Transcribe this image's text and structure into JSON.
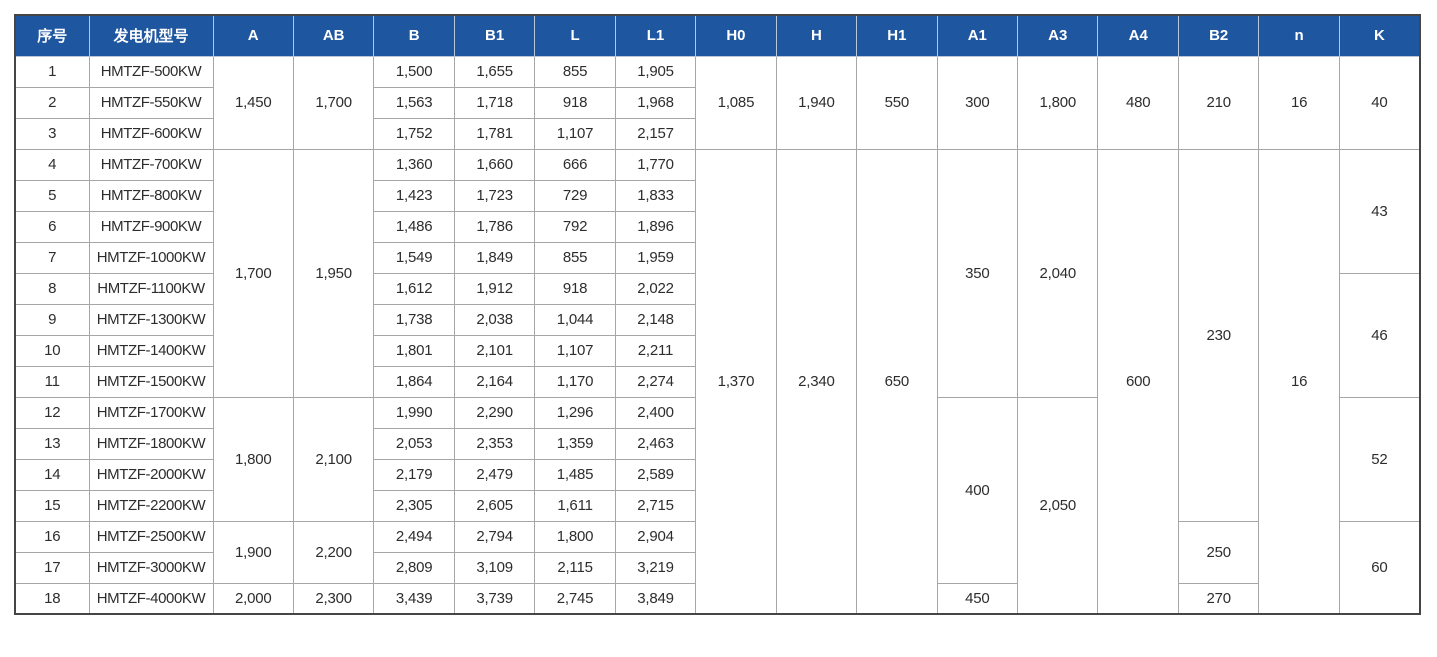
{
  "colors": {
    "header_bg": "#1e56a0",
    "header_text": "#ffffff",
    "header_divider": "#b9c6d9",
    "grid": "#a6a6a6",
    "outer": "#454545",
    "text": "#2d2d2d",
    "page_bg": "#ffffff"
  },
  "chart_data": {
    "type": "table",
    "title": "",
    "columns": [
      {
        "key": "no",
        "label": "序号"
      },
      {
        "key": "model",
        "label": "发电机型号"
      },
      {
        "key": "A",
        "label": "A"
      },
      {
        "key": "AB",
        "label": "AB"
      },
      {
        "key": "B",
        "label": "B"
      },
      {
        "key": "B1",
        "label": "B1"
      },
      {
        "key": "L",
        "label": "L"
      },
      {
        "key": "L1",
        "label": "L1"
      },
      {
        "key": "H0",
        "label": "H0"
      },
      {
        "key": "H",
        "label": "H"
      },
      {
        "key": "H1",
        "label": "H1"
      },
      {
        "key": "A1",
        "label": "A1"
      },
      {
        "key": "A3",
        "label": "A3"
      },
      {
        "key": "A4",
        "label": "A4"
      },
      {
        "key": "B2",
        "label": "B2"
      },
      {
        "key": "n",
        "label": "n"
      },
      {
        "key": "K",
        "label": "K"
      }
    ],
    "rows": [
      [
        [
          "no",
          "1"
        ],
        [
          "model",
          "HMTZF-500KW"
        ],
        [
          "A",
          "1,450",
          3
        ],
        [
          "AB",
          "1,700",
          3
        ],
        [
          "B",
          "1,500"
        ],
        [
          "B1",
          "1,655"
        ],
        [
          "L",
          "855"
        ],
        [
          "L1",
          "1,905"
        ],
        [
          "H0",
          "1,085",
          3
        ],
        [
          "H",
          "1,940",
          3
        ],
        [
          "H1",
          "550",
          3
        ],
        [
          "A1",
          "300",
          3
        ],
        [
          "A3",
          "1,800",
          3
        ],
        [
          "A4",
          "480",
          3
        ],
        [
          "B2",
          "210",
          3
        ],
        [
          "n",
          "16",
          3
        ],
        [
          "K",
          "40",
          3
        ]
      ],
      [
        [
          "no",
          "2"
        ],
        [
          "model",
          "HMTZF-550KW"
        ],
        [
          "B",
          "1,563"
        ],
        [
          "B1",
          "1,718"
        ],
        [
          "L",
          "918"
        ],
        [
          "L1",
          "1,968"
        ]
      ],
      [
        [
          "no",
          "3"
        ],
        [
          "model",
          "HMTZF-600KW"
        ],
        [
          "B",
          "1,752"
        ],
        [
          "B1",
          "1,781"
        ],
        [
          "L",
          "1,107"
        ],
        [
          "L1",
          "2,157"
        ]
      ],
      [
        [
          "no",
          "4"
        ],
        [
          "model",
          "HMTZF-700KW"
        ],
        [
          "A",
          "1,700",
          8
        ],
        [
          "AB",
          "1,950",
          8
        ],
        [
          "B",
          "1,360"
        ],
        [
          "B1",
          "1,660"
        ],
        [
          "L",
          "666"
        ],
        [
          "L1",
          "1,770"
        ],
        [
          "H0",
          "1,370",
          15
        ],
        [
          "H",
          "2,340",
          15
        ],
        [
          "H1",
          "650",
          15
        ],
        [
          "A1",
          "350",
          8
        ],
        [
          "A3",
          "2,040",
          8
        ],
        [
          "A4",
          "600",
          15
        ],
        [
          "B2",
          "230",
          12
        ],
        [
          "n",
          "16",
          15
        ],
        [
          "K",
          "43",
          4
        ]
      ],
      [
        [
          "no",
          "5"
        ],
        [
          "model",
          "HMTZF-800KW"
        ],
        [
          "B",
          "1,423"
        ],
        [
          "B1",
          "1,723"
        ],
        [
          "L",
          "729"
        ],
        [
          "L1",
          "1,833"
        ]
      ],
      [
        [
          "no",
          "6"
        ],
        [
          "model",
          "HMTZF-900KW"
        ],
        [
          "B",
          "1,486"
        ],
        [
          "B1",
          "1,786"
        ],
        [
          "L",
          "792"
        ],
        [
          "L1",
          "1,896"
        ]
      ],
      [
        [
          "no",
          "7"
        ],
        [
          "model",
          "HMTZF-1000KW"
        ],
        [
          "B",
          "1,549"
        ],
        [
          "B1",
          "1,849"
        ],
        [
          "L",
          "855"
        ],
        [
          "L1",
          "1,959"
        ]
      ],
      [
        [
          "no",
          "8"
        ],
        [
          "model",
          "HMTZF-1100KW"
        ],
        [
          "B",
          "1,612"
        ],
        [
          "B1",
          "1,912"
        ],
        [
          "L",
          "918"
        ],
        [
          "L1",
          "2,022"
        ],
        [
          "K",
          "46",
          4
        ]
      ],
      [
        [
          "no",
          "9"
        ],
        [
          "model",
          "HMTZF-1300KW"
        ],
        [
          "B",
          "1,738"
        ],
        [
          "B1",
          "2,038"
        ],
        [
          "L",
          "1,044"
        ],
        [
          "L1",
          "2,148"
        ]
      ],
      [
        [
          "no",
          "10"
        ],
        [
          "model",
          "HMTZF-1400KW"
        ],
        [
          "B",
          "1,801"
        ],
        [
          "B1",
          "2,101"
        ],
        [
          "L",
          "1,107"
        ],
        [
          "L1",
          "2,211"
        ]
      ],
      [
        [
          "no",
          "11"
        ],
        [
          "model",
          "HMTZF-1500KW"
        ],
        [
          "B",
          "1,864"
        ],
        [
          "B1",
          "2,164"
        ],
        [
          "L",
          "1,170"
        ],
        [
          "L1",
          "2,274"
        ]
      ],
      [
        [
          "no",
          "12"
        ],
        [
          "model",
          "HMTZF-1700KW"
        ],
        [
          "A",
          "1,800",
          4
        ],
        [
          "AB",
          "2,100",
          4
        ],
        [
          "B",
          "1,990"
        ],
        [
          "B1",
          "2,290"
        ],
        [
          "L",
          "1,296"
        ],
        [
          "L1",
          "2,400"
        ],
        [
          "A1",
          "400",
          6
        ],
        [
          "A3",
          "2,050",
          7
        ],
        [
          "K",
          "52",
          4
        ]
      ],
      [
        [
          "no",
          "13"
        ],
        [
          "model",
          "HMTZF-1800KW"
        ],
        [
          "B",
          "2,053"
        ],
        [
          "B1",
          "2,353"
        ],
        [
          "L",
          "1,359"
        ],
        [
          "L1",
          "2,463"
        ]
      ],
      [
        [
          "no",
          "14"
        ],
        [
          "model",
          "HMTZF-2000KW"
        ],
        [
          "B",
          "2,179"
        ],
        [
          "B1",
          "2,479"
        ],
        [
          "L",
          "1,485"
        ],
        [
          "L1",
          "2,589"
        ]
      ],
      [
        [
          "no",
          "15"
        ],
        [
          "model",
          "HMTZF-2200KW"
        ],
        [
          "B",
          "2,305"
        ],
        [
          "B1",
          "2,605"
        ],
        [
          "L",
          "1,611"
        ],
        [
          "L1",
          "2,715"
        ]
      ],
      [
        [
          "no",
          "16"
        ],
        [
          "model",
          "HMTZF-2500KW"
        ],
        [
          "A",
          "1,900",
          2
        ],
        [
          "AB",
          "2,200",
          2
        ],
        [
          "B",
          "2,494"
        ],
        [
          "B1",
          "2,794"
        ],
        [
          "L",
          "1,800"
        ],
        [
          "L1",
          "2,904"
        ],
        [
          "B2",
          "250",
          2
        ],
        [
          "K",
          "60",
          3
        ]
      ],
      [
        [
          "no",
          "17"
        ],
        [
          "model",
          "HMTZF-3000KW"
        ],
        [
          "B",
          "2,809"
        ],
        [
          "B1",
          "3,109"
        ],
        [
          "L",
          "2,115"
        ],
        [
          "L1",
          "3,219"
        ]
      ],
      [
        [
          "no",
          "18"
        ],
        [
          "model",
          "HMTZF-4000KW"
        ],
        [
          "A",
          "2,000"
        ],
        [
          "AB",
          "2,300"
        ],
        [
          "B",
          "3,439"
        ],
        [
          "B1",
          "3,739"
        ],
        [
          "L",
          "2,745"
        ],
        [
          "L1",
          "3,849"
        ],
        [
          "A1",
          "450"
        ],
        [
          "B2",
          "270"
        ]
      ]
    ]
  }
}
